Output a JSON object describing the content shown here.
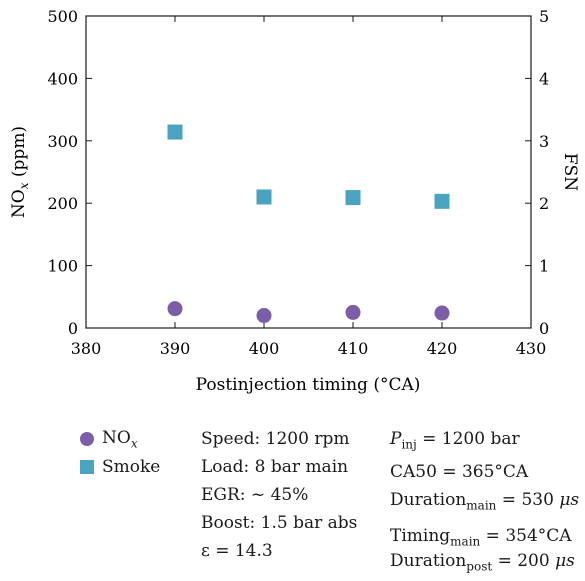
{
  "chart_data": {
    "type": "scatter",
    "x_axis": {
      "label_text": "Postinjection timing (°CA)",
      "range": [
        380,
        430
      ],
      "ticks": [
        380,
        390,
        400,
        410,
        420,
        430
      ]
    },
    "y_axis_left": {
      "label_main": "NO",
      "label_sub": "x",
      "label_unit": " (ppm)",
      "range": [
        0,
        500
      ],
      "ticks": [
        0,
        100,
        200,
        300,
        400,
        500
      ]
    },
    "y_axis_right": {
      "label_text": "FSN",
      "range": [
        0,
        5
      ],
      "ticks": [
        0,
        1,
        2,
        3,
        4,
        5
      ]
    },
    "series": [
      {
        "name_main": "NO",
        "name_sub": "x",
        "axis": "left",
        "marker": "circle",
        "color": "#7b5ea7",
        "x": [
          390,
          400,
          410,
          420
        ],
        "y": [
          31,
          20,
          25,
          24
        ]
      },
      {
        "name": "Smoke",
        "axis": "right",
        "marker": "square",
        "color": "#4aa3bf",
        "x": [
          390,
          400,
          410,
          420
        ],
        "y": [
          3.14,
          2.1,
          2.09,
          2.03
        ]
      }
    ],
    "grid": false,
    "legend_position": "bottom-left"
  },
  "notes": {
    "col1": [
      "Speed: 1200 rpm",
      "Load: 8 bar main",
      "EGR: ~ 45%",
      "Boost: 1.5 bar abs",
      "ε = 14.3"
    ],
    "pinj": {
      "sym": "P",
      "sub": "inj",
      "rest": " = 1200 bar"
    },
    "ca50": "CA50 = 365°CA",
    "dur_main": {
      "base": "Duration",
      "sub": "main",
      "rest": " = 530 ",
      "unit": "μs"
    },
    "timing_main": {
      "base": "Timing",
      "sub": "main",
      "rest": " = 354°CA"
    },
    "dur_post": {
      "base": "Duration",
      "sub": "post",
      "rest": " = 200 ",
      "unit": "μs"
    }
  }
}
